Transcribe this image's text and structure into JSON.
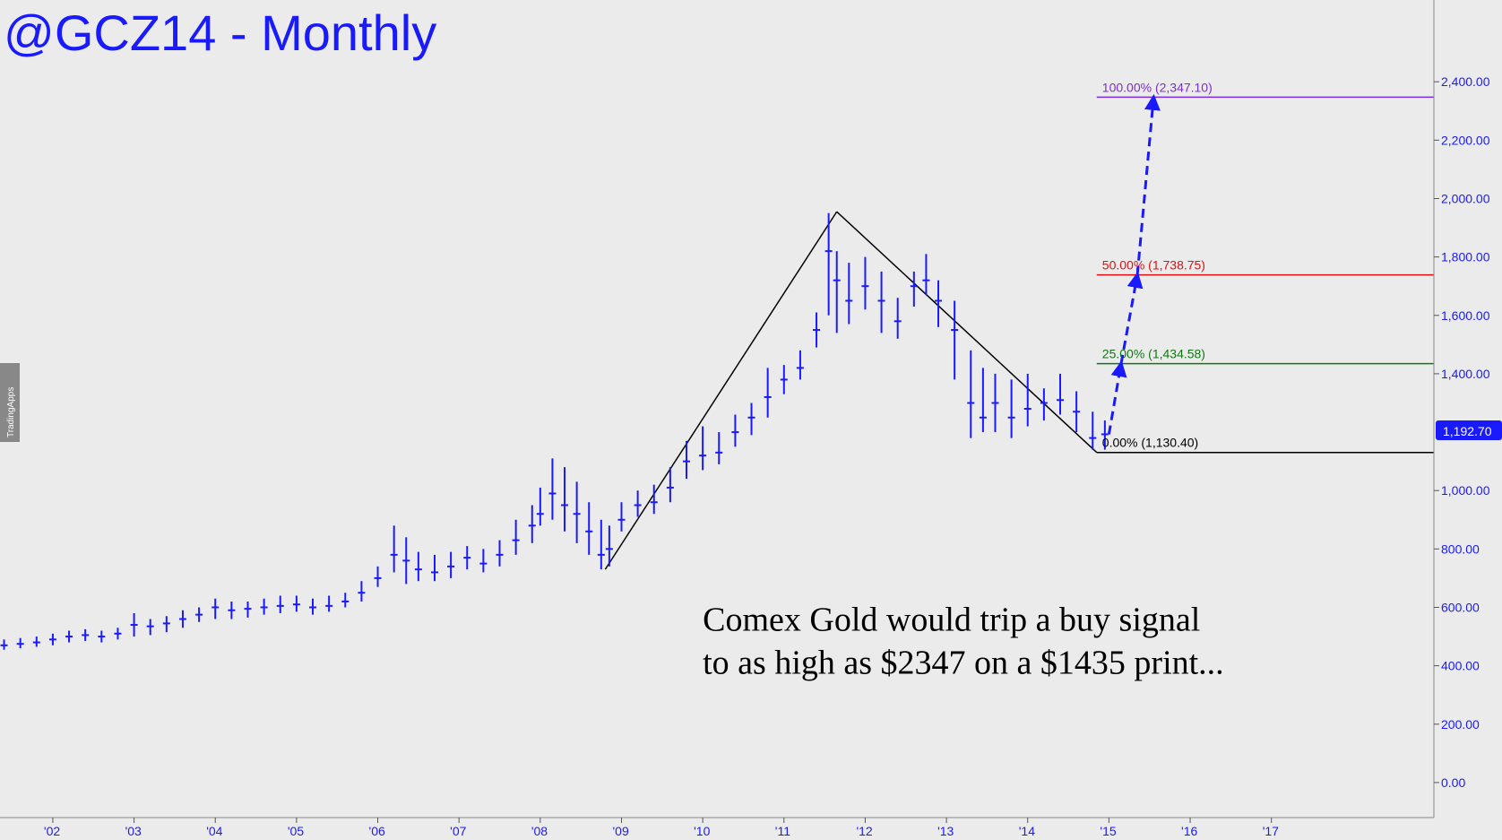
{
  "chart_data": {
    "type": "bar",
    "title": "@GCZ14 - Monthly",
    "y_ticks": [
      "2,400.00",
      "2,200.00",
      "2,000.00",
      "1,800.00",
      "1,600.00",
      "1,400.00",
      "1,000.00",
      "800.00",
      "600.00",
      "400.00",
      "200.00",
      "0.00"
    ],
    "y_tick_values": [
      2400,
      2200,
      2000,
      1800,
      1600,
      1400,
      1000,
      800,
      600,
      400,
      200,
      0
    ],
    "ylim": [
      -120,
      2680
    ],
    "x_ticks": [
      "'02",
      "'03",
      "'04",
      "'05",
      "'06",
      "'07",
      "'08",
      "'09",
      "'10",
      "'11",
      "'12",
      "'13",
      "'14",
      "'15",
      "'16",
      "'17"
    ],
    "x_tick_years": [
      2002,
      2003,
      2004,
      2005,
      2006,
      2007,
      2008,
      2009,
      2010,
      2011,
      2012,
      2013,
      2014,
      2015,
      2016,
      2017
    ],
    "xlim": [
      2001.35,
      2019.0
    ],
    "last_price": "1,192.70",
    "last_price_value": 1192.7,
    "grid": false,
    "series_color": "#1a1aff",
    "series": [
      {
        "x": [
          2001.4,
          2001.6,
          2001.8,
          2002.0,
          2002.2,
          2002.4,
          2002.6,
          2002.8,
          2003.0,
          2003.2,
          2003.4,
          2003.6,
          2003.8,
          2004.0,
          2004.2,
          2004.4,
          2004.6,
          2004.8,
          2005.0,
          2005.2,
          2005.4,
          2005.6,
          2005.8,
          2006.0,
          2006.2,
          2006.35,
          2006.5,
          2006.7,
          2006.9,
          2007.1,
          2007.3,
          2007.5,
          2007.7,
          2007.9,
          2008.0,
          2008.15,
          2008.3,
          2008.45,
          2008.6,
          2008.75,
          2008.85,
          2009.0,
          2009.2,
          2009.4,
          2009.6,
          2009.8,
          2010.0,
          2010.2,
          2010.4,
          2010.6,
          2010.8,
          2011.0,
          2011.2,
          2011.4,
          2011.55,
          2011.65,
          2011.8,
          2012.0,
          2012.2,
          2012.4,
          2012.6,
          2012.75,
          2012.9,
          2013.1,
          2013.3,
          2013.45,
          2013.6,
          2013.8,
          2014.0,
          2014.2,
          2014.4,
          2014.6,
          2014.8,
          2014.95
        ],
        "y": [
          470,
          475,
          480,
          490,
          500,
          505,
          500,
          510,
          540,
          535,
          545,
          560,
          575,
          600,
          590,
          595,
          600,
          605,
          610,
          600,
          605,
          620,
          650,
          700,
          780,
          760,
          730,
          720,
          740,
          770,
          750,
          780,
          830,
          880,
          920,
          990,
          950,
          920,
          860,
          780,
          800,
          900,
          950,
          960,
          1010,
          1100,
          1120,
          1130,
          1200,
          1250,
          1320,
          1380,
          1420,
          1550,
          1820,
          1720,
          1650,
          1700,
          1650,
          1580,
          1700,
          1720,
          1650,
          1550,
          1300,
          1250,
          1300,
          1250,
          1280,
          1300,
          1310,
          1270,
          1180,
          1192.7
        ],
        "high": [
          490,
          495,
          500,
          510,
          520,
          525,
          520,
          530,
          580,
          560,
          570,
          590,
          600,
          630,
          620,
          620,
          630,
          640,
          640,
          630,
          640,
          650,
          690,
          740,
          880,
          840,
          790,
          780,
          790,
          810,
          800,
          830,
          900,
          950,
          1010,
          1110,
          1080,
          1030,
          960,
          900,
          880,
          960,
          1000,
          1020,
          1080,
          1170,
          1220,
          1200,
          1260,
          1300,
          1420,
          1430,
          1480,
          1610,
          1950,
          1820,
          1780,
          1800,
          1750,
          1660,
          1750,
          1810,
          1720,
          1650,
          1480,
          1420,
          1400,
          1380,
          1400,
          1350,
          1400,
          1340,
          1270,
          1240
        ],
        "low": [
          455,
          460,
          465,
          470,
          480,
          485,
          480,
          490,
          500,
          505,
          515,
          530,
          550,
          560,
          560,
          565,
          575,
          580,
          585,
          575,
          585,
          600,
          620,
          670,
          720,
          680,
          690,
          690,
          700,
          730,
          720,
          740,
          780,
          820,
          880,
          900,
          860,
          820,
          780,
          730,
          740,
          860,
          910,
          920,
          960,
          1040,
          1070,
          1090,
          1150,
          1190,
          1250,
          1330,
          1380,
          1490,
          1600,
          1540,
          1570,
          1620,
          1540,
          1520,
          1630,
          1670,
          1560,
          1380,
          1180,
          1200,
          1200,
          1180,
          1220,
          1240,
          1260,
          1200,
          1140,
          1140
        ]
      }
    ],
    "fib_levels": [
      {
        "label": "100.00% (2,347.10)",
        "value": 2347.1,
        "color": "#7a2fd4"
      },
      {
        "label": "50.00% (1,738.75)",
        "value": 1738.75,
        "color": "#e01010"
      },
      {
        "label": "25.00% (1,434.58)",
        "value": 1434.58,
        "color": "#107a10"
      },
      {
        "label": "0.00% (1,130.40)",
        "value": 1130.4,
        "color": "#000000"
      }
    ],
    "fib_start_x": 2014.85,
    "swing_points": [
      {
        "x": 2008.8,
        "y": 730
      },
      {
        "x": 2011.65,
        "y": 1955
      },
      {
        "x": 2014.85,
        "y": 1130.4
      }
    ],
    "projection_path": [
      {
        "x": 2015.0,
        "y": 1192.7
      },
      {
        "x": 2015.15,
        "y": 1434.58
      },
      {
        "x": 2015.35,
        "y": 1738.75
      },
      {
        "x": 2015.55,
        "y": 2347.1
      }
    ],
    "annotation": [
      "Comex Gold would trip a buy signal",
      "to as high as $2347 on a $1435 print..."
    ],
    "annotation_anchor": {
      "x": 2010.0,
      "y": 520
    }
  },
  "watermark": "TradingApps",
  "colors": {
    "background": "#ebebeb",
    "axis_text": "#1a1aff",
    "projection": "#1a1aff",
    "price_tag_bg": "#1a1aff"
  }
}
